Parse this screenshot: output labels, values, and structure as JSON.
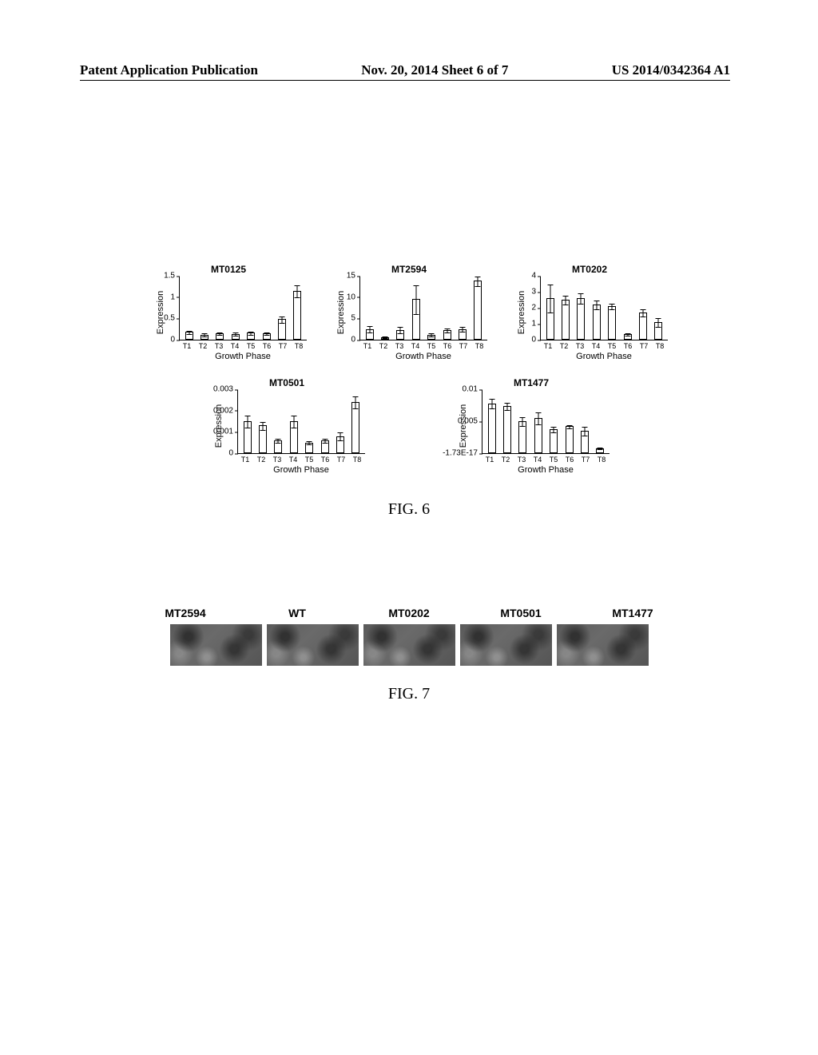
{
  "header": {
    "left": "Patent Application Publication",
    "center": "Nov. 20, 2014  Sheet 6 of 7",
    "right": "US 2014/0342364 A1"
  },
  "fig6": {
    "caption": "FIG. 6",
    "ylabel": "Expression",
    "xlabel": "Growth Phase",
    "categories": [
      "T1",
      "T2",
      "T3",
      "T4",
      "T5",
      "T6",
      "T7",
      "T8"
    ],
    "charts": [
      {
        "title": "MT0125",
        "ymax": 1.5,
        "yticks": [
          {
            "v": 0,
            "l": "0"
          },
          {
            "v": 0.5,
            "l": "0.5"
          },
          {
            "v": 1,
            "l": "1"
          },
          {
            "v": 1.5,
            "l": "1.5"
          }
        ],
        "values": [
          0.18,
          0.12,
          0.15,
          0.14,
          0.16,
          0.15,
          0.48,
          1.15
        ],
        "errors": [
          0.05,
          0.04,
          0.04,
          0.04,
          0.04,
          0.04,
          0.08,
          0.15
        ]
      },
      {
        "title": "MT2594",
        "ymax": 15,
        "yticks": [
          {
            "v": 0,
            "l": "0"
          },
          {
            "v": 5,
            "l": "5"
          },
          {
            "v": 10,
            "l": "10"
          },
          {
            "v": 15,
            "l": "15"
          }
        ],
        "values": [
          2.5,
          0.6,
          2.3,
          9.5,
          1.2,
          2.2,
          2.5,
          13.8
        ],
        "errors": [
          0.8,
          0.3,
          0.8,
          3.5,
          0.4,
          0.6,
          0.7,
          1.2
        ]
      },
      {
        "title": "MT0202",
        "ymax": 4,
        "yticks": [
          {
            "v": 0,
            "l": "0"
          },
          {
            "v": 1,
            "l": "1"
          },
          {
            "v": 2,
            "l": "2"
          },
          {
            "v": 3,
            "l": "3"
          },
          {
            "v": 4,
            "l": "4"
          }
        ],
        "values": [
          2.6,
          2.5,
          2.6,
          2.2,
          2.1,
          0.35,
          1.7,
          1.1
        ],
        "errors": [
          0.9,
          0.3,
          0.35,
          0.3,
          0.2,
          0.1,
          0.25,
          0.3
        ]
      },
      {
        "title": "MT0501",
        "ymax": 0.003,
        "yticks": [
          {
            "v": 0,
            "l": "0"
          },
          {
            "v": 0.001,
            "l": "0.001"
          },
          {
            "v": 0.002,
            "l": "0.002"
          },
          {
            "v": 0.003,
            "l": "0.003"
          }
        ],
        "values": [
          0.0015,
          0.0013,
          0.0006,
          0.0015,
          0.0005,
          0.0006,
          0.0008,
          0.0024
        ],
        "errors": [
          0.0003,
          0.0002,
          0.0001,
          0.0003,
          0.0001,
          0.0001,
          0.0002,
          0.0003
        ]
      },
      {
        "title": "MT1477",
        "ymax": 0.01,
        "yticks": [
          {
            "v": 0,
            "l": "-1.73E-17"
          },
          {
            "v": 0.005,
            "l": "0.005"
          },
          {
            "v": 0.01,
            "l": "0.01"
          }
        ],
        "values": [
          0.0078,
          0.0074,
          0.005,
          0.0055,
          0.0038,
          0.0042,
          0.0035,
          0.0008
        ],
        "errors": [
          0.0008,
          0.0006,
          0.0007,
          0.001,
          0.0005,
          0.0003,
          0.0007,
          0.0002
        ]
      }
    ]
  },
  "fig7": {
    "caption": "FIG. 7",
    "labels": [
      "MT2594",
      "WT",
      "MT0202",
      "MT0501",
      "MT1477"
    ],
    "image_bg": "#6a6a6a"
  }
}
